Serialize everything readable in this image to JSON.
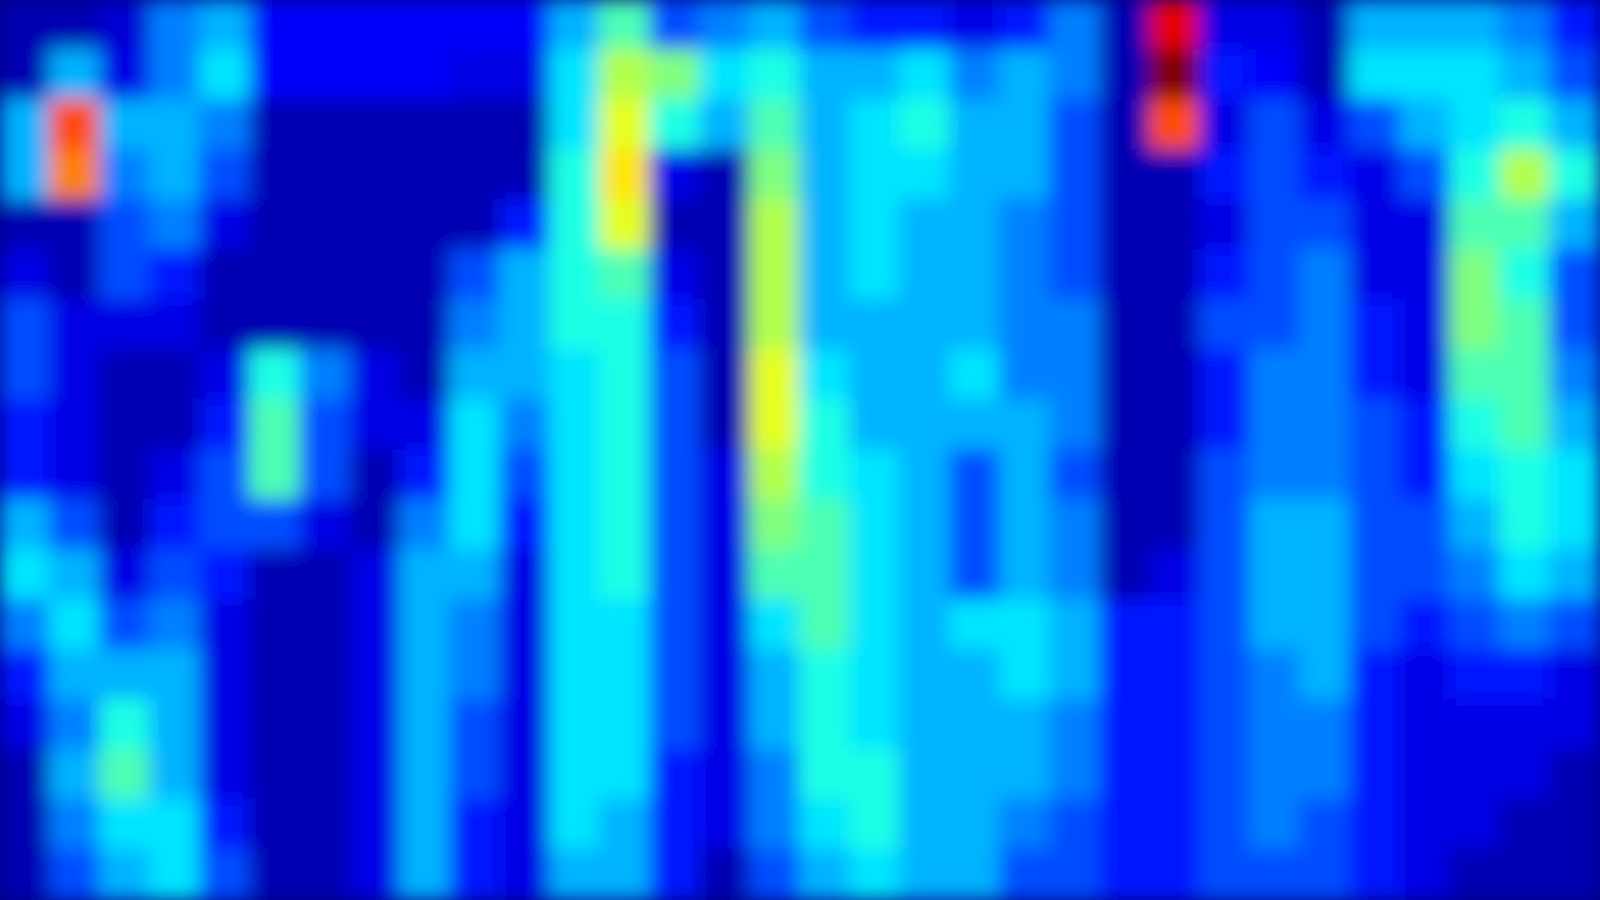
{
  "chart_data": {
    "type": "heatmap",
    "tick_labels": false,
    "color_range": [
      0,
      1
    ],
    "cells": [
      [
        0.05,
        0.05,
        0.08,
        0.25,
        0.3,
        0.12,
        0.12,
        0.12,
        0.12,
        0.12,
        0.12,
        0.3,
        0.45,
        0.2,
        0.25,
        0.3,
        0.2,
        0.15,
        0.15,
        0.1,
        0.15,
        0.25,
        0.05,
        0.9,
        0.1,
        0.1,
        0.05,
        0.3,
        0.3,
        0.3,
        0.25,
        0.15
      ],
      [
        0.05,
        0.3,
        0.1,
        0.25,
        0.35,
        0.12,
        0.12,
        0.12,
        0.12,
        0.1,
        0.1,
        0.35,
        0.55,
        0.5,
        0.35,
        0.4,
        0.3,
        0.3,
        0.35,
        0.25,
        0.3,
        0.25,
        0.05,
        1.0,
        0.15,
        0.12,
        0.05,
        0.35,
        0.35,
        0.35,
        0.3,
        0.2
      ],
      [
        0.3,
        0.8,
        0.3,
        0.3,
        0.25,
        0.05,
        0.05,
        0.05,
        0.05,
        0.05,
        0.05,
        0.35,
        0.6,
        0.4,
        0.3,
        0.45,
        0.3,
        0.35,
        0.4,
        0.3,
        0.3,
        0.2,
        0.05,
        0.8,
        0.1,
        0.2,
        0.1,
        0.2,
        0.3,
        0.35,
        0.4,
        0.3
      ],
      [
        0.3,
        0.75,
        0.25,
        0.3,
        0.2,
        0.05,
        0.05,
        0.05,
        0.05,
        0.05,
        0.05,
        0.4,
        0.65,
        0.1,
        0.05,
        0.5,
        0.3,
        0.35,
        0.35,
        0.3,
        0.3,
        0.2,
        0.05,
        0.05,
        0.15,
        0.2,
        0.15,
        0.1,
        0.2,
        0.4,
        0.55,
        0.4
      ],
      [
        0.05,
        0.05,
        0.2,
        0.25,
        0.1,
        0.05,
        0.05,
        0.05,
        0.05,
        0.05,
        0.15,
        0.4,
        0.6,
        0.05,
        0.05,
        0.55,
        0.3,
        0.35,
        0.3,
        0.3,
        0.25,
        0.2,
        0.05,
        0.05,
        0.1,
        0.2,
        0.2,
        0.1,
        0.1,
        0.45,
        0.45,
        0.3
      ],
      [
        0.1,
        0.05,
        0.2,
        0.15,
        0.05,
        0.05,
        0.05,
        0.05,
        0.05,
        0.2,
        0.3,
        0.4,
        0.45,
        0.1,
        0.05,
        0.55,
        0.3,
        0.35,
        0.3,
        0.3,
        0.25,
        0.2,
        0.05,
        0.05,
        0.15,
        0.2,
        0.25,
        0.1,
        0.1,
        0.5,
        0.4,
        0.2
      ],
      [
        0.2,
        0.1,
        0.1,
        0.1,
        0.05,
        0.05,
        0.05,
        0.05,
        0.05,
        0.25,
        0.3,
        0.4,
        0.4,
        0.15,
        0.05,
        0.55,
        0.3,
        0.3,
        0.3,
        0.3,
        0.25,
        0.25,
        0.05,
        0.05,
        0.2,
        0.2,
        0.25,
        0.15,
        0.1,
        0.5,
        0.45,
        0.2
      ],
      [
        0.2,
        0.1,
        0.05,
        0.05,
        0.1,
        0.4,
        0.25,
        0.1,
        0.05,
        0.3,
        0.3,
        0.35,
        0.4,
        0.2,
        0.05,
        0.6,
        0.35,
        0.3,
        0.3,
        0.35,
        0.25,
        0.25,
        0.05,
        0.05,
        0.15,
        0.25,
        0.25,
        0.15,
        0.1,
        0.45,
        0.45,
        0.25
      ],
      [
        0.15,
        0.1,
        0.05,
        0.05,
        0.15,
        0.45,
        0.2,
        0.1,
        0.1,
        0.35,
        0.25,
        0.35,
        0.4,
        0.2,
        0.05,
        0.6,
        0.4,
        0.3,
        0.3,
        0.3,
        0.3,
        0.25,
        0.05,
        0.05,
        0.15,
        0.25,
        0.25,
        0.2,
        0.15,
        0.4,
        0.45,
        0.3
      ],
      [
        0.15,
        0.1,
        0.05,
        0.1,
        0.2,
        0.45,
        0.2,
        0.05,
        0.15,
        0.35,
        0.2,
        0.35,
        0.4,
        0.2,
        0.1,
        0.55,
        0.4,
        0.35,
        0.3,
        0.2,
        0.3,
        0.2,
        0.05,
        0.05,
        0.2,
        0.25,
        0.25,
        0.2,
        0.15,
        0.35,
        0.4,
        0.35
      ],
      [
        0.3,
        0.2,
        0.05,
        0.15,
        0.2,
        0.2,
        0.1,
        0.05,
        0.25,
        0.35,
        0.15,
        0.35,
        0.4,
        0.2,
        0.1,
        0.5,
        0.45,
        0.35,
        0.3,
        0.2,
        0.3,
        0.25,
        0.05,
        0.05,
        0.2,
        0.3,
        0.3,
        0.2,
        0.2,
        0.3,
        0.4,
        0.35
      ],
      [
        0.35,
        0.3,
        0.1,
        0.2,
        0.15,
        0.05,
        0.05,
        0.1,
        0.3,
        0.3,
        0.1,
        0.35,
        0.4,
        0.2,
        0.1,
        0.45,
        0.45,
        0.35,
        0.3,
        0.2,
        0.3,
        0.25,
        0.05,
        0.1,
        0.2,
        0.3,
        0.3,
        0.2,
        0.2,
        0.25,
        0.35,
        0.3
      ],
      [
        0.25,
        0.35,
        0.2,
        0.25,
        0.1,
        0.05,
        0.05,
        0.1,
        0.3,
        0.25,
        0.1,
        0.35,
        0.35,
        0.2,
        0.1,
        0.35,
        0.45,
        0.35,
        0.3,
        0.35,
        0.35,
        0.3,
        0.15,
        0.15,
        0.2,
        0.3,
        0.3,
        0.2,
        0.15,
        0.2,
        0.25,
        0.2
      ],
      [
        0.15,
        0.3,
        0.3,
        0.3,
        0.1,
        0.05,
        0.05,
        0.1,
        0.3,
        0.25,
        0.1,
        0.35,
        0.35,
        0.2,
        0.1,
        0.3,
        0.4,
        0.35,
        0.3,
        0.3,
        0.35,
        0.3,
        0.15,
        0.15,
        0.2,
        0.25,
        0.3,
        0.15,
        0.1,
        0.15,
        0.15,
        0.1
      ],
      [
        0.1,
        0.25,
        0.4,
        0.3,
        0.1,
        0.05,
        0.05,
        0.1,
        0.3,
        0.2,
        0.1,
        0.35,
        0.35,
        0.2,
        0.1,
        0.3,
        0.4,
        0.35,
        0.3,
        0.3,
        0.3,
        0.25,
        0.15,
        0.15,
        0.2,
        0.25,
        0.25,
        0.15,
        0.1,
        0.1,
        0.1,
        0.1
      ],
      [
        0.05,
        0.3,
        0.45,
        0.3,
        0.1,
        0.05,
        0.05,
        0.1,
        0.3,
        0.2,
        0.1,
        0.35,
        0.35,
        0.15,
        0.1,
        0.25,
        0.4,
        0.4,
        0.3,
        0.3,
        0.3,
        0.25,
        0.15,
        0.15,
        0.2,
        0.25,
        0.25,
        0.15,
        0.1,
        0.1,
        0.1,
        0.05
      ],
      [
        0.05,
        0.25,
        0.35,
        0.35,
        0.15,
        0.05,
        0.05,
        0.1,
        0.3,
        0.15,
        0.1,
        0.35,
        0.3,
        0.15,
        0.1,
        0.25,
        0.35,
        0.4,
        0.3,
        0.3,
        0.25,
        0.2,
        0.15,
        0.15,
        0.2,
        0.25,
        0.2,
        0.15,
        0.1,
        0.1,
        0.05,
        0.05
      ],
      [
        0.05,
        0.2,
        0.3,
        0.35,
        0.2,
        0.05,
        0.05,
        0.1,
        0.3,
        0.15,
        0.1,
        0.3,
        0.3,
        0.15,
        0.05,
        0.2,
        0.3,
        0.35,
        0.3,
        0.3,
        0.2,
        0.2,
        0.15,
        0.15,
        0.2,
        0.2,
        0.2,
        0.15,
        0.1,
        0.05,
        0.05,
        0.05
      ]
    ]
  }
}
